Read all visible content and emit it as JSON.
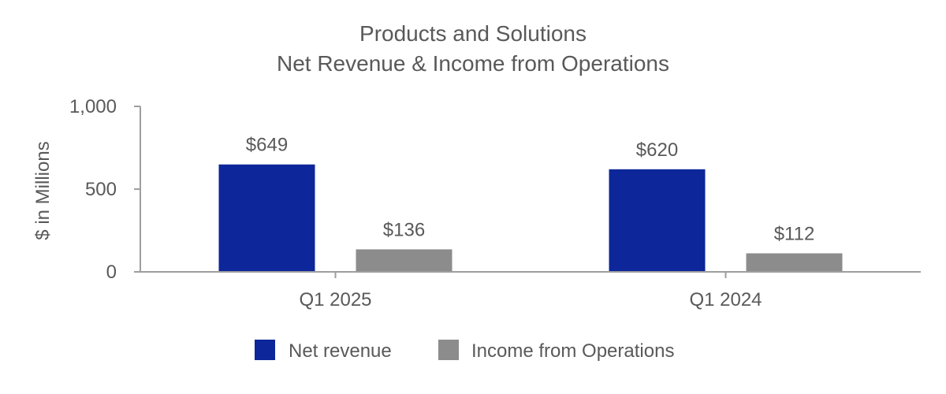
{
  "chart_data": {
    "type": "bar",
    "title_lines": [
      "Products and Solutions",
      "Net Revenue & Income from Operations"
    ],
    "ylabel": "$ in Millions",
    "xlabel": "",
    "ylim": [
      0,
      1000
    ],
    "yticks": [
      0,
      500,
      1000
    ],
    "ytick_labels": [
      "0",
      "500",
      "1,000"
    ],
    "categories": [
      "Q1 2025",
      "Q1 2024"
    ],
    "series": [
      {
        "name": "Net revenue",
        "color": "#0d2699",
        "values": [
          649,
          620
        ],
        "labels": [
          "$649",
          "$620"
        ]
      },
      {
        "name": "Income from Operations",
        "color": "#8c8c8c",
        "values": [
          136,
          112
        ],
        "labels": [
          "$136",
          "$112"
        ]
      }
    ],
    "grid": false,
    "legend_position": "bottom"
  }
}
